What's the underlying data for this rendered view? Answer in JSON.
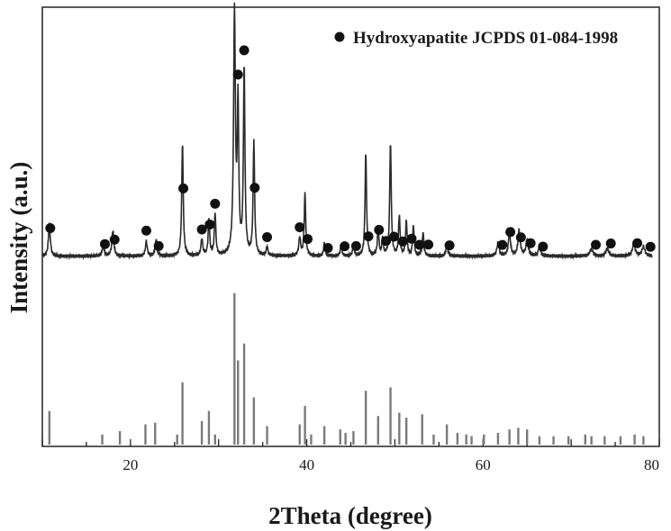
{
  "chart_data": {
    "type": "line",
    "xlabel": "2Theta (degree)",
    "ylabel": "Intensity (a.u.)",
    "xlim": [
      10,
      80
    ],
    "xticks": [
      20,
      40,
      60,
      80
    ],
    "yticks": [],
    "grid": false,
    "legend": {
      "position": "top-right",
      "marker": "filled-circle",
      "label": "Hydroxyapatite JCPDS 01-084-1998"
    },
    "colors": {
      "line": "#2b2b2b",
      "marker": "#111111",
      "stick": "#7a7a7a"
    },
    "pattern_baseline": 0.12,
    "pattern_peaks": [
      [
        10.8,
        0.18,
        0.12
      ],
      [
        16.9,
        0.06,
        0.12
      ],
      [
        18.0,
        0.14,
        0.13
      ],
      [
        21.8,
        0.08,
        0.12
      ],
      [
        22.9,
        0.09,
        0.12
      ],
      [
        25.9,
        0.62,
        0.1
      ],
      [
        28.1,
        0.09,
        0.12
      ],
      [
        28.9,
        0.2,
        0.1
      ],
      [
        29.6,
        0.23,
        0.1
      ],
      [
        31.8,
        1.32,
        0.12
      ],
      [
        32.2,
        0.8,
        0.1
      ],
      [
        32.9,
        1.02,
        0.1
      ],
      [
        34.0,
        0.62,
        0.1
      ],
      [
        35.5,
        0.05,
        0.1
      ],
      [
        39.2,
        0.1,
        0.12
      ],
      [
        39.8,
        0.34,
        0.1
      ],
      [
        42.0,
        0.07,
        0.1
      ],
      [
        43.9,
        0.06,
        0.1
      ],
      [
        45.3,
        0.06,
        0.1
      ],
      [
        46.7,
        0.56,
        0.1
      ],
      [
        48.1,
        0.15,
        0.1
      ],
      [
        48.6,
        0.09,
        0.1
      ],
      [
        49.5,
        0.62,
        0.1
      ],
      [
        50.5,
        0.22,
        0.1
      ],
      [
        51.3,
        0.19,
        0.1
      ],
      [
        52.1,
        0.16,
        0.1
      ],
      [
        53.2,
        0.13,
        0.1
      ],
      [
        55.9,
        0.06,
        0.12
      ],
      [
        61.7,
        0.07,
        0.15
      ],
      [
        63.0,
        0.12,
        0.15
      ],
      [
        64.1,
        0.14,
        0.15
      ],
      [
        65.0,
        0.09,
        0.15
      ],
      [
        66.4,
        0.05,
        0.15
      ],
      [
        72.3,
        0.04,
        0.2
      ],
      [
        74.1,
        0.04,
        0.2
      ],
      [
        77.1,
        0.06,
        0.2
      ],
      [
        78.2,
        0.05,
        0.2
      ]
    ],
    "peak_markers": [
      10.9,
      17.1,
      18.2,
      21.8,
      23.2,
      26.0,
      28.1,
      29.0,
      29.6,
      31.8,
      32.2,
      32.9,
      34.1,
      35.5,
      39.2,
      40.1,
      42.4,
      44.3,
      45.6,
      47.0,
      48.2,
      49.0,
      49.9,
      50.9,
      51.9,
      52.8,
      53.8,
      56.2,
      62.2,
      63.1,
      64.3,
      65.4,
      66.8,
      72.8,
      74.5,
      77.5,
      79.0
    ],
    "reference_sticks": [
      [
        10.8,
        0.2
      ],
      [
        16.8,
        0.06
      ],
      [
        18.8,
        0.08
      ],
      [
        21.7,
        0.12
      ],
      [
        22.8,
        0.13
      ],
      [
        25.3,
        0.06
      ],
      [
        25.9,
        0.37
      ],
      [
        28.1,
        0.14
      ],
      [
        28.9,
        0.2
      ],
      [
        29.6,
        0.06
      ],
      [
        31.8,
        0.9
      ],
      [
        32.2,
        0.5
      ],
      [
        32.9,
        0.6
      ],
      [
        34.0,
        0.28
      ],
      [
        35.5,
        0.11
      ],
      [
        39.2,
        0.12
      ],
      [
        39.8,
        0.23
      ],
      [
        40.5,
        0.06
      ],
      [
        42.0,
        0.11
      ],
      [
        43.8,
        0.09
      ],
      [
        44.4,
        0.07
      ],
      [
        45.3,
        0.08
      ],
      [
        46.7,
        0.32
      ],
      [
        48.1,
        0.17
      ],
      [
        49.5,
        0.34
      ],
      [
        50.5,
        0.19
      ],
      [
        51.3,
        0.16
      ],
      [
        53.1,
        0.18
      ],
      [
        54.4,
        0.06
      ],
      [
        55.9,
        0.12
      ],
      [
        57.1,
        0.07
      ],
      [
        58.1,
        0.06
      ],
      [
        58.7,
        0.05
      ],
      [
        60.1,
        0.06
      ],
      [
        61.7,
        0.07
      ],
      [
        63.0,
        0.09
      ],
      [
        64.0,
        0.1
      ],
      [
        65.0,
        0.09
      ],
      [
        66.4,
        0.05
      ],
      [
        68.0,
        0.05
      ],
      [
        69.7,
        0.05
      ],
      [
        71.6,
        0.06
      ],
      [
        72.3,
        0.05
      ],
      [
        73.8,
        0.05
      ],
      [
        75.6,
        0.05
      ],
      [
        77.2,
        0.06
      ],
      [
        78.2,
        0.05
      ]
    ]
  }
}
